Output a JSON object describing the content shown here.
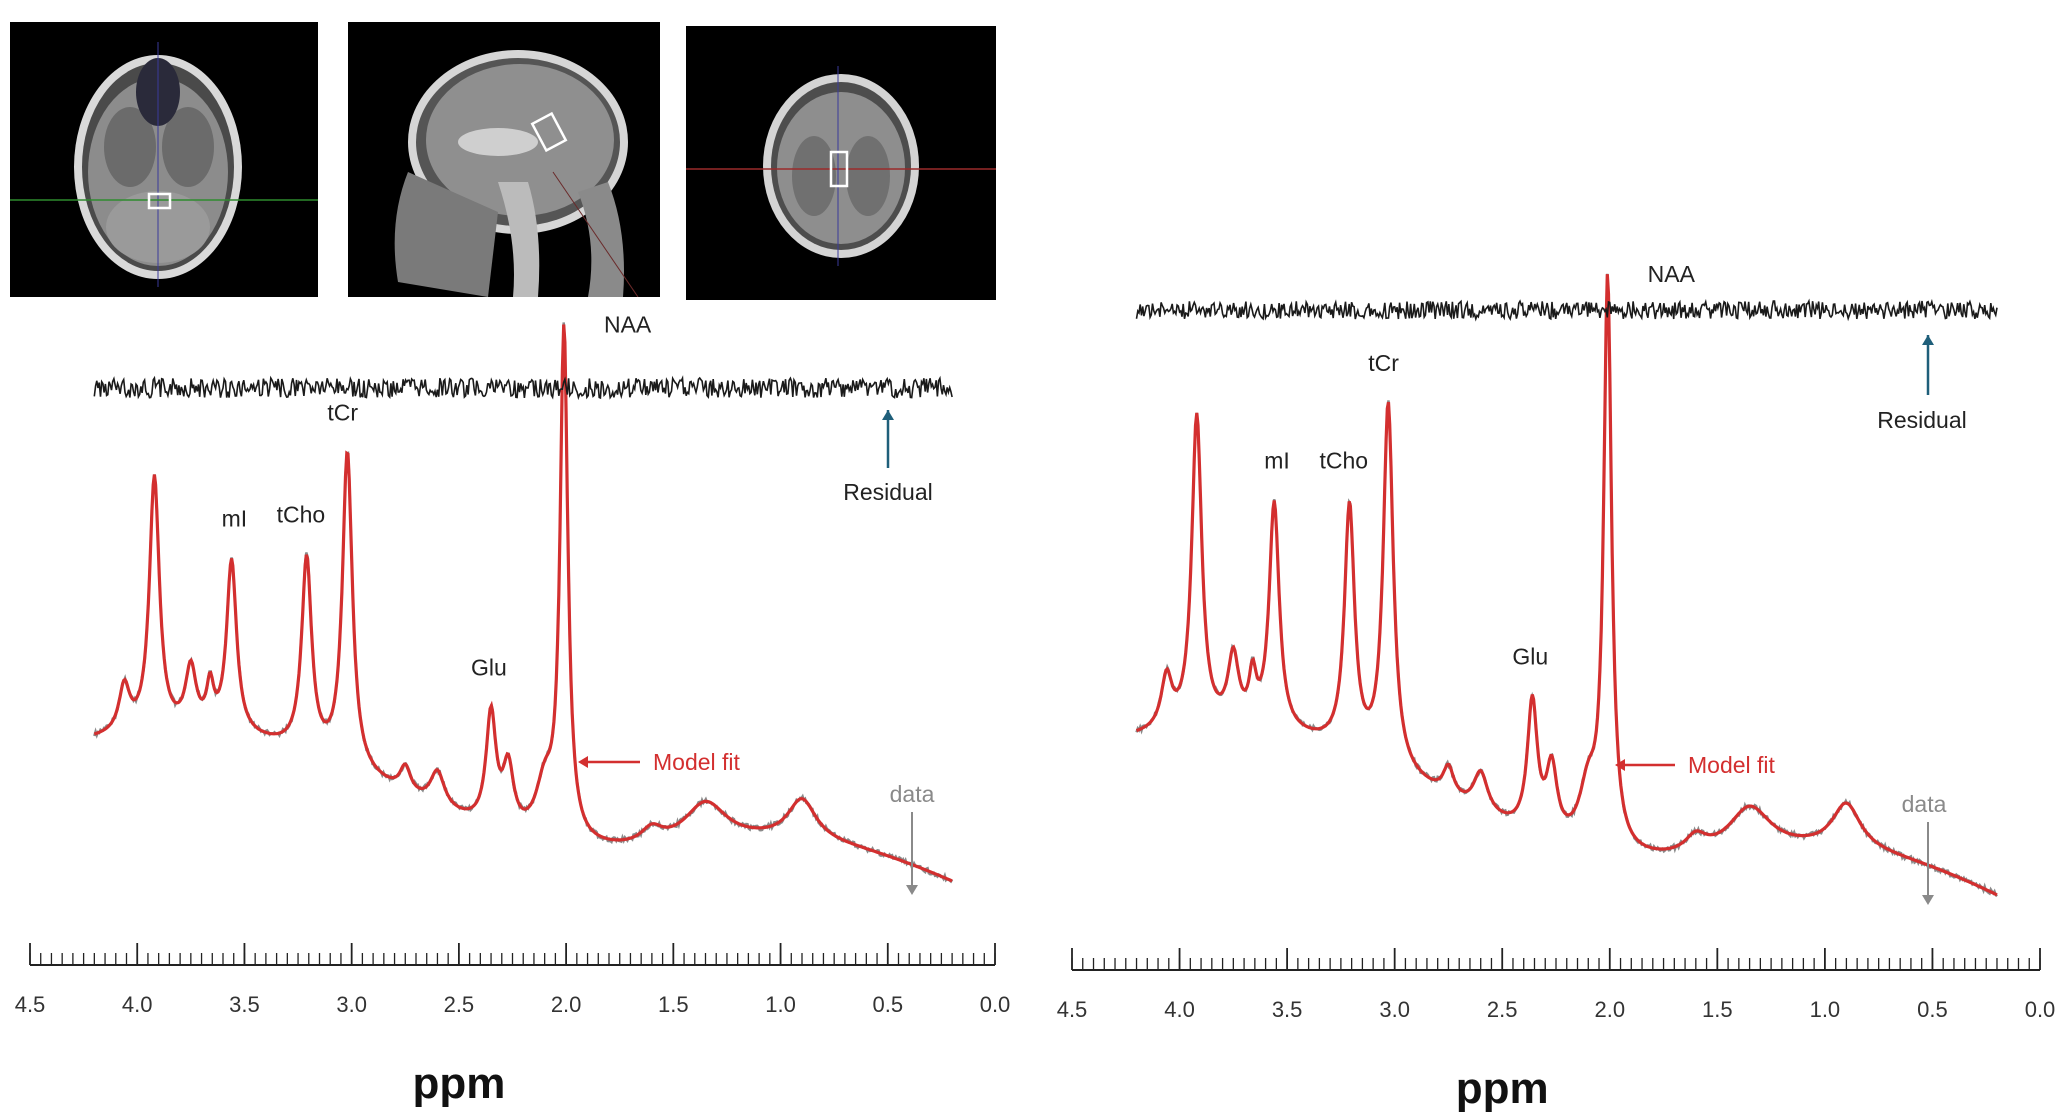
{
  "chart_data": [
    {
      "type": "line",
      "xlabel": "ppm",
      "xlim": [
        4.5,
        0.0
      ],
      "x_ticks": [
        "4.5",
        "4.0",
        "3.5",
        "3.0",
        "2.5",
        "2.0",
        "1.5",
        "1.0",
        "0.5",
        "0.0"
      ],
      "x_ticks_values": [
        4.5,
        4.0,
        3.5,
        3.0,
        2.5,
        2.0,
        1.5,
        1.0,
        0.5,
        0.0
      ],
      "x_axis_reversed": true,
      "y_axis_shown": false,
      "data_range": [
        4.2,
        0.2
      ],
      "series": [
        {
          "name": "Model fit",
          "color": "#d32f2f"
        },
        {
          "name": "data",
          "color": "#8a8a8a"
        },
        {
          "name": "Residual",
          "color": "#1a1a1a"
        }
      ],
      "peaks": [
        {
          "label": "NAA",
          "ppm": 2.01,
          "height": 1.0
        },
        {
          "label": "tCr",
          "ppm": 3.02,
          "height": 0.62
        },
        {
          "label": "tCho",
          "ppm": 3.21,
          "height": 0.38
        },
        {
          "label": "mI",
          "ppm": 3.56,
          "height": 0.34
        },
        {
          "label": "Glu",
          "ppm": 2.35,
          "height": 0.22
        },
        {
          "ppm": 3.92,
          "height": 0.5
        }
      ],
      "annotations": {
        "model_fit": "Model fit",
        "data": "data",
        "residual": "Residual"
      }
    },
    {
      "type": "line",
      "xlabel": "ppm",
      "xlim": [
        4.5,
        0.0
      ],
      "x_ticks": [
        "4.5",
        "4.0",
        "3.5",
        "3.0",
        "2.5",
        "2.0",
        "1.5",
        "1.0",
        "0.5",
        "0.0"
      ],
      "x_ticks_values": [
        4.5,
        4.0,
        3.5,
        3.0,
        2.5,
        2.0,
        1.5,
        1.0,
        0.5,
        0.0
      ],
      "x_axis_reversed": true,
      "y_axis_shown": false,
      "data_range": [
        4.2,
        0.2
      ],
      "series": [
        {
          "name": "Model fit",
          "color": "#d32f2f"
        },
        {
          "name": "data",
          "color": "#8a8a8a"
        },
        {
          "name": "Residual",
          "color": "#1a1a1a"
        }
      ],
      "peaks": [
        {
          "label": "NAA",
          "ppm": 2.01,
          "height": 1.0
        },
        {
          "label": "tCr",
          "ppm": 3.03,
          "height": 0.64
        },
        {
          "label": "tCho",
          "ppm": 3.21,
          "height": 0.43
        },
        {
          "label": "mI",
          "ppm": 3.56,
          "height": 0.4
        },
        {
          "label": "Glu",
          "ppm": 2.36,
          "height": 0.23
        },
        {
          "ppm": 3.92,
          "height": 0.55
        }
      ],
      "annotations": {
        "model_fit": "Model fit",
        "data": "data",
        "residual": "Residual"
      }
    }
  ],
  "mri_views": [
    {
      "view": "axial"
    },
    {
      "view": "sagittal"
    },
    {
      "view": "coronal"
    }
  ]
}
